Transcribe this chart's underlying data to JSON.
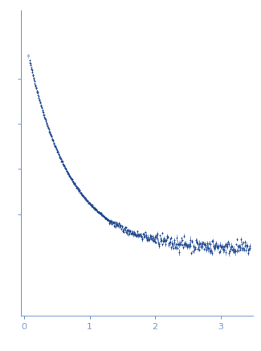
{
  "title": "",
  "xlabel": "",
  "ylabel": "",
  "xlim": [
    -0.05,
    3.5
  ],
  "ylim": [
    -0.25,
    1.1
  ],
  "x_ticks": [
    0,
    1,
    2,
    3
  ],
  "background_color": "#ffffff",
  "dot_color": "#1a4488",
  "error_color": "#5577bb",
  "dot_size": 1.5,
  "decay_scale": 1.55,
  "seed": 42
}
